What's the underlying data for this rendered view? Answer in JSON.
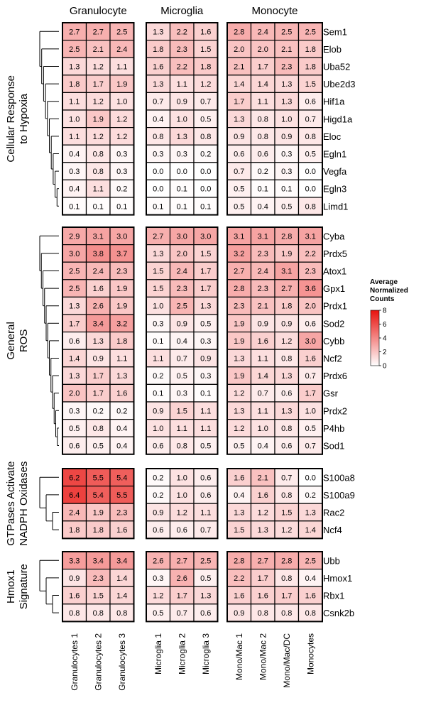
{
  "chart_data": {
    "type": "heatmap",
    "color_scale": {
      "min": 0,
      "max": 8,
      "low_color": "#ffffff",
      "high_color": "#e8120e"
    },
    "legend": {
      "title_lines": [
        "Average",
        "Normalized",
        "Counts"
      ],
      "ticks": [
        0,
        2,
        4,
        6,
        8
      ],
      "placement": "right"
    },
    "column_groups": [
      {
        "name": "Granulocyte",
        "columns": [
          "Granulocytes 1",
          "Granulocytes 2",
          "Granulocytes 3"
        ]
      },
      {
        "name": "Microglia",
        "columns": [
          "Microglia 1",
          "Microglia 2",
          "Microglia 3"
        ]
      },
      {
        "name": "Monocyte",
        "columns": [
          "Mono/Mac 1",
          "Mono/Mac 2",
          "Mono/Mac/DC",
          "Monocytes"
        ]
      }
    ],
    "row_groups": [
      {
        "label_lines": [
          "Cellular Response",
          "to Hypoxia"
        ],
        "genes": [
          "Sem1",
          "Elob",
          "Uba52",
          "Ube2d3",
          "Hif1a",
          "Higd1a",
          "Eloc",
          "Egln1",
          "Vegfa",
          "Egln3",
          "Limd1"
        ],
        "values": [
          [
            2.7,
            2.7,
            2.5,
            1.3,
            2.2,
            1.6,
            2.8,
            2.4,
            2.5,
            2.5
          ],
          [
            2.5,
            2.1,
            2.4,
            1.8,
            2.3,
            1.5,
            2.0,
            2.0,
            2.1,
            1.8
          ],
          [
            1.3,
            1.2,
            1.1,
            1.6,
            2.2,
            1.8,
            2.1,
            1.7,
            2.3,
            1.8
          ],
          [
            1.8,
            1.7,
            1.9,
            1.3,
            1.1,
            1.2,
            1.4,
            1.4,
            1.3,
            1.5
          ],
          [
            1.1,
            1.2,
            1.0,
            0.7,
            0.9,
            0.7,
            1.7,
            1.1,
            1.3,
            0.6
          ],
          [
            1.0,
            1.9,
            1.2,
            0.4,
            1.0,
            0.5,
            1.3,
            0.8,
            1.0,
            0.7
          ],
          [
            1.1,
            1.2,
            1.2,
            0.8,
            1.3,
            0.8,
            0.9,
            0.8,
            0.9,
            0.8
          ],
          [
            0.4,
            0.8,
            0.3,
            0.3,
            0.3,
            0.2,
            0.6,
            0.6,
            0.3,
            0.5
          ],
          [
            0.3,
            0.8,
            0.3,
            0.0,
            0.0,
            0.0,
            0.7,
            0.2,
            0.3,
            0.0
          ],
          [
            0.4,
            1.1,
            0.2,
            0.0,
            0.1,
            0.0,
            0.5,
            0.1,
            0.1,
            0.0
          ],
          [
            0.1,
            0.1,
            0.1,
            0.1,
            0.1,
            0.1,
            0.5,
            0.4,
            0.5,
            0.8
          ]
        ]
      },
      {
        "label_lines": [
          "General",
          "ROS"
        ],
        "genes": [
          "Cyba",
          "Prdx5",
          "Atox1",
          "Gpx1",
          "Prdx1",
          "Sod2",
          "Cybb",
          "Ncf2",
          "Prdx6",
          "Gsr",
          "Prdx2",
          "P4hb",
          "Sod1"
        ],
        "values": [
          [
            2.9,
            3.1,
            3.0,
            2.7,
            3.0,
            3.0,
            3.1,
            3.1,
            2.8,
            3.1
          ],
          [
            3.0,
            3.8,
            3.7,
            1.3,
            2.0,
            1.5,
            3.2,
            2.3,
            1.9,
            2.2
          ],
          [
            2.5,
            2.4,
            2.3,
            1.5,
            2.4,
            1.7,
            2.7,
            2.4,
            3.1,
            2.3
          ],
          [
            2.5,
            1.6,
            1.9,
            1.5,
            2.3,
            1.7,
            2.8,
            2.3,
            2.7,
            3.6
          ],
          [
            1.3,
            2.6,
            1.9,
            1.0,
            2.5,
            1.3,
            2.3,
            2.1,
            1.8,
            2.0
          ],
          [
            1.7,
            3.4,
            3.2,
            0.3,
            0.9,
            0.5,
            1.9,
            0.9,
            0.9,
            0.6
          ],
          [
            0.6,
            1.3,
            1.8,
            0.1,
            0.4,
            0.3,
            1.9,
            1.6,
            1.2,
            3.0
          ],
          [
            1.4,
            0.9,
            1.1,
            1.1,
            0.7,
            0.9,
            1.3,
            1.1,
            0.8,
            1.6
          ],
          [
            1.3,
            1.7,
            1.3,
            0.2,
            0.5,
            0.3,
            1.9,
            1.4,
            1.3,
            0.7
          ],
          [
            2.0,
            1.7,
            1.6,
            0.1,
            0.3,
            0.1,
            1.2,
            0.7,
            0.6,
            1.7
          ],
          [
            0.3,
            0.2,
            0.2,
            0.9,
            1.5,
            1.1,
            1.3,
            1.1,
            1.3,
            1.0
          ],
          [
            0.5,
            0.8,
            0.4,
            1.0,
            1.1,
            1.1,
            1.2,
            1.0,
            0.8,
            0.5
          ],
          [
            0.6,
            0.5,
            0.4,
            0.6,
            0.8,
            0.5,
            0.5,
            0.4,
            0.6,
            0.7
          ]
        ]
      },
      {
        "label_lines": [
          "GTPases Activate",
          "NADPH Oxidases"
        ],
        "genes": [
          "S100a8",
          "S100a9",
          "Rac2",
          "Ncf4"
        ],
        "values": [
          [
            6.2,
            5.5,
            5.4,
            0.2,
            1.0,
            0.6,
            1.6,
            2.1,
            0.7,
            0.0
          ],
          [
            6.4,
            5.4,
            5.5,
            0.2,
            1.0,
            0.6,
            0.4,
            1.6,
            0.8,
            0.2
          ],
          [
            2.4,
            1.9,
            2.3,
            0.9,
            1.2,
            1.1,
            1.3,
            1.2,
            1.5,
            1.3
          ],
          [
            1.8,
            1.8,
            1.6,
            0.6,
            0.6,
            0.7,
            1.5,
            1.3,
            1.2,
            1.4
          ]
        ]
      },
      {
        "label_lines": [
          "Hmox1",
          "Signature"
        ],
        "genes": [
          "Ubb",
          "Hmox1",
          "Rbx1",
          "Csnk2b"
        ],
        "values": [
          [
            3.3,
            3.4,
            3.4,
            2.6,
            2.7,
            2.5,
            2.8,
            2.7,
            2.8,
            2.5
          ],
          [
            0.9,
            2.3,
            1.4,
            0.3,
            2.6,
            0.5,
            2.2,
            1.7,
            0.8,
            0.4
          ],
          [
            1.6,
            1.5,
            1.4,
            1.2,
            1.7,
            1.3,
            1.6,
            1.6,
            1.7,
            1.6
          ],
          [
            0.8,
            0.8,
            0.8,
            0.5,
            0.7,
            0.6,
            0.9,
            0.8,
            0.8,
            0.8
          ]
        ]
      }
    ]
  }
}
